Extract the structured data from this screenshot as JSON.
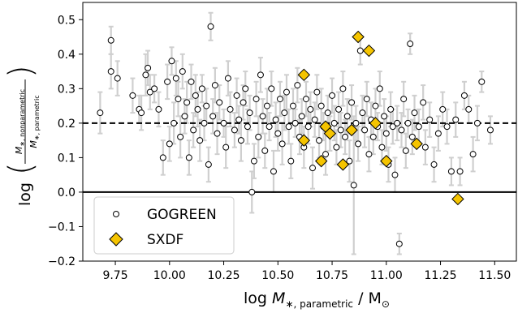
{
  "chart_data": {
    "type": "scatter",
    "xlabel": "log M*, parametric / M⊙",
    "ylabel": "log (M*, nonparametric / M*, parametric)",
    "xlim": [
      9.6,
      11.6
    ],
    "ylim": [
      -0.2,
      0.55
    ],
    "xticks": [
      "9.75",
      "10.00",
      "10.25",
      "10.50",
      "10.75",
      "11.00",
      "11.25",
      "11.50"
    ],
    "yticks": [
      "−0.2",
      "−0.1",
      "0.0",
      "0.1",
      "0.2",
      "0.3",
      "0.4",
      "0.5"
    ],
    "reference_lines": [
      {
        "y": 0.2,
        "style": "dashed"
      },
      {
        "y": 0.0,
        "style": "solid"
      }
    ],
    "legend": {
      "placement": "lower-left",
      "entries": [
        "GOGREEN",
        "SXDF"
      ]
    },
    "colors": {
      "gogreen_face": "#ffffff",
      "gogreen_edge": "#000000",
      "sxdf_face": "#f5c400",
      "sxdf_edge": "#000000",
      "errorbar": "#cfcfcf"
    },
    "series": [
      {
        "name": "GOGREEN",
        "marker": "circle",
        "points": [
          {
            "x": 9.68,
            "y": 0.23,
            "err": 0.06
          },
          {
            "x": 9.73,
            "y": 0.44,
            "err": 0.04
          },
          {
            "x": 9.73,
            "y": 0.35,
            "err": 0.05
          },
          {
            "x": 9.76,
            "y": 0.33,
            "err": 0.05
          },
          {
            "x": 9.83,
            "y": 0.28,
            "err": 0.05
          },
          {
            "x": 9.86,
            "y": 0.24,
            "err": 0.04
          },
          {
            "x": 9.87,
            "y": 0.23,
            "err": 0.05
          },
          {
            "x": 9.89,
            "y": 0.34,
            "err": 0.06
          },
          {
            "x": 9.9,
            "y": 0.36,
            "err": 0.05
          },
          {
            "x": 9.91,
            "y": 0.29,
            "err": 0.05
          },
          {
            "x": 9.93,
            "y": 0.3,
            "err": 0.04
          },
          {
            "x": 9.95,
            "y": 0.24,
            "err": 0.05
          },
          {
            "x": 9.97,
            "y": 0.1,
            "err": 0.05
          },
          {
            "x": 9.99,
            "y": 0.32,
            "err": 0.05
          },
          {
            "x": 10.0,
            "y": 0.14,
            "err": 0.05
          },
          {
            "x": 10.01,
            "y": 0.38,
            "err": 0.04
          },
          {
            "x": 10.02,
            "y": 0.2,
            "err": 0.06
          },
          {
            "x": 10.03,
            "y": 0.33,
            "err": 0.05
          },
          {
            "x": 10.04,
            "y": 0.27,
            "err": 0.05
          },
          {
            "x": 10.05,
            "y": 0.16,
            "err": 0.06
          },
          {
            "x": 10.06,
            "y": 0.35,
            "err": 0.05
          },
          {
            "x": 10.07,
            "y": 0.22,
            "err": 0.05
          },
          {
            "x": 10.08,
            "y": 0.26,
            "err": 0.06
          },
          {
            "x": 10.09,
            "y": 0.1,
            "err": 0.05
          },
          {
            "x": 10.1,
            "y": 0.32,
            "err": 0.05
          },
          {
            "x": 10.11,
            "y": 0.18,
            "err": 0.05
          },
          {
            "x": 10.12,
            "y": 0.28,
            "err": 0.06
          },
          {
            "x": 10.13,
            "y": 0.24,
            "err": 0.05
          },
          {
            "x": 10.14,
            "y": 0.15,
            "err": 0.06
          },
          {
            "x": 10.15,
            "y": 0.3,
            "err": 0.04
          },
          {
            "x": 10.16,
            "y": 0.2,
            "err": 0.05
          },
          {
            "x": 10.17,
            "y": 0.25,
            "err": 0.05
          },
          {
            "x": 10.18,
            "y": 0.08,
            "err": 0.05
          },
          {
            "x": 10.19,
            "y": 0.48,
            "err": 0.04
          },
          {
            "x": 10.2,
            "y": 0.22,
            "err": 0.05
          },
          {
            "x": 10.21,
            "y": 0.31,
            "err": 0.05
          },
          {
            "x": 10.22,
            "y": 0.17,
            "err": 0.06
          },
          {
            "x": 10.23,
            "y": 0.26,
            "err": 0.05
          },
          {
            "x": 10.25,
            "y": 0.2,
            "err": 0.04
          },
          {
            "x": 10.26,
            "y": 0.13,
            "err": 0.06
          },
          {
            "x": 10.27,
            "y": 0.33,
            "err": 0.05
          },
          {
            "x": 10.28,
            "y": 0.24,
            "err": 0.05
          },
          {
            "x": 10.3,
            "y": 0.18,
            "err": 0.05
          },
          {
            "x": 10.31,
            "y": 0.28,
            "err": 0.05
          },
          {
            "x": 10.32,
            "y": 0.21,
            "err": 0.04
          },
          {
            "x": 10.33,
            "y": 0.15,
            "err": 0.06
          },
          {
            "x": 10.34,
            "y": 0.26,
            "err": 0.05
          },
          {
            "x": 10.35,
            "y": 0.3,
            "err": 0.05
          },
          {
            "x": 10.36,
            "y": 0.19,
            "err": 0.05
          },
          {
            "x": 10.37,
            "y": 0.23,
            "err": 0.05
          },
          {
            "x": 10.38,
            "y": 0.0,
            "err": 0.06
          },
          {
            "x": 10.39,
            "y": 0.09,
            "err": 0.05
          },
          {
            "x": 10.4,
            "y": 0.27,
            "err": 0.05
          },
          {
            "x": 10.41,
            "y": 0.16,
            "err": 0.06
          },
          {
            "x": 10.42,
            "y": 0.34,
            "err": 0.05
          },
          {
            "x": 10.43,
            "y": 0.22,
            "err": 0.05
          },
          {
            "x": 10.44,
            "y": 0.12,
            "err": 0.05
          },
          {
            "x": 10.45,
            "y": 0.25,
            "err": 0.05
          },
          {
            "x": 10.46,
            "y": 0.19,
            "err": 0.04
          },
          {
            "x": 10.47,
            "y": 0.3,
            "err": 0.05
          },
          {
            "x": 10.48,
            "y": 0.06,
            "err": 0.06
          },
          {
            "x": 10.49,
            "y": 0.21,
            "err": 0.05
          },
          {
            "x": 10.5,
            "y": 0.17,
            "err": 0.05
          },
          {
            "x": 10.51,
            "y": 0.27,
            "err": 0.05
          },
          {
            "x": 10.52,
            "y": 0.14,
            "err": 0.06
          },
          {
            "x": 10.53,
            "y": 0.23,
            "err": 0.05
          },
          {
            "x": 10.54,
            "y": 0.29,
            "err": 0.05
          },
          {
            "x": 10.55,
            "y": 0.19,
            "err": 0.05
          },
          {
            "x": 10.56,
            "y": 0.09,
            "err": 0.05
          },
          {
            "x": 10.57,
            "y": 0.25,
            "err": 0.05
          },
          {
            "x": 10.58,
            "y": 0.2,
            "err": 0.04
          },
          {
            "x": 10.59,
            "y": 0.31,
            "err": 0.05
          },
          {
            "x": 10.6,
            "y": 0.16,
            "err": 0.05
          },
          {
            "x": 10.61,
            "y": 0.22,
            "err": 0.05
          },
          {
            "x": 10.62,
            "y": 0.13,
            "err": 0.06
          },
          {
            "x": 10.63,
            "y": 0.27,
            "err": 0.05
          },
          {
            "x": 10.64,
            "y": 0.19,
            "err": 0.05
          },
          {
            "x": 10.65,
            "y": 0.24,
            "err": 0.05
          },
          {
            "x": 10.66,
            "y": 0.07,
            "err": 0.06
          },
          {
            "x": 10.67,
            "y": 0.21,
            "err": 0.05
          },
          {
            "x": 10.68,
            "y": 0.29,
            "err": 0.05
          },
          {
            "x": 10.69,
            "y": 0.15,
            "err": 0.05
          },
          {
            "x": 10.7,
            "y": 0.25,
            "err": 0.05
          },
          {
            "x": 10.71,
            "y": 0.19,
            "err": 0.04
          },
          {
            "x": 10.72,
            "y": 0.11,
            "err": 0.06
          },
          {
            "x": 10.73,
            "y": 0.23,
            "err": 0.05
          },
          {
            "x": 10.74,
            "y": 0.17,
            "err": 0.05
          },
          {
            "x": 10.75,
            "y": 0.28,
            "err": 0.05
          },
          {
            "x": 10.76,
            "y": 0.2,
            "err": 0.05
          },
          {
            "x": 10.77,
            "y": 0.13,
            "err": 0.05
          },
          {
            "x": 10.78,
            "y": 0.24,
            "err": 0.05
          },
          {
            "x": 10.79,
            "y": 0.18,
            "err": 0.05
          },
          {
            "x": 10.8,
            "y": 0.3,
            "err": 0.05
          },
          {
            "x": 10.81,
            "y": 0.16,
            "err": 0.05
          },
          {
            "x": 10.82,
            "y": 0.22,
            "err": 0.05
          },
          {
            "x": 10.83,
            "y": 0.09,
            "err": 0.06
          },
          {
            "x": 10.84,
            "y": 0.26,
            "err": 0.05
          },
          {
            "x": 10.85,
            "y": 0.02,
            "err": 0.2
          },
          {
            "x": 10.86,
            "y": 0.2,
            "err": 0.05
          },
          {
            "x": 10.87,
            "y": 0.14,
            "err": 0.05
          },
          {
            "x": 10.88,
            "y": 0.41,
            "err": 0.04
          },
          {
            "x": 10.89,
            "y": 0.23,
            "err": 0.05
          },
          {
            "x": 10.9,
            "y": 0.18,
            "err": 0.05
          },
          {
            "x": 10.91,
            "y": 0.27,
            "err": 0.05
          },
          {
            "x": 10.92,
            "y": 0.11,
            "err": 0.05
          },
          {
            "x": 10.93,
            "y": 0.21,
            "err": 0.05
          },
          {
            "x": 10.94,
            "y": 0.16,
            "err": 0.05
          },
          {
            "x": 10.95,
            "y": 0.25,
            "err": 0.05
          },
          {
            "x": 10.96,
            "y": 0.19,
            "err": 0.04
          },
          {
            "x": 10.97,
            "y": 0.3,
            "err": 0.05
          },
          {
            "x": 10.98,
            "y": 0.13,
            "err": 0.05
          },
          {
            "x": 10.99,
            "y": 0.22,
            "err": 0.05
          },
          {
            "x": 11.0,
            "y": 0.17,
            "err": 0.05
          },
          {
            "x": 11.01,
            "y": 0.08,
            "err": 0.05
          },
          {
            "x": 11.02,
            "y": 0.24,
            "err": 0.05
          },
          {
            "x": 11.03,
            "y": 0.19,
            "err": 0.05
          },
          {
            "x": 11.04,
            "y": 0.05,
            "err": 0.05
          },
          {
            "x": 11.05,
            "y": 0.2,
            "err": 0.05
          },
          {
            "x": 11.06,
            "y": -0.15,
            "err": 0.03
          },
          {
            "x": 11.07,
            "y": 0.18,
            "err": 0.05
          },
          {
            "x": 11.08,
            "y": 0.27,
            "err": 0.05
          },
          {
            "x": 11.09,
            "y": 0.12,
            "err": 0.05
          },
          {
            "x": 11.1,
            "y": 0.2,
            "err": 0.04
          },
          {
            "x": 11.11,
            "y": 0.43,
            "err": 0.03
          },
          {
            "x": 11.12,
            "y": 0.16,
            "err": 0.05
          },
          {
            "x": 11.13,
            "y": 0.23,
            "err": 0.05
          },
          {
            "x": 11.15,
            "y": 0.19,
            "err": 0.05
          },
          {
            "x": 11.17,
            "y": 0.26,
            "err": 0.05
          },
          {
            "x": 11.18,
            "y": 0.13,
            "err": 0.05
          },
          {
            "x": 11.2,
            "y": 0.21,
            "err": 0.05
          },
          {
            "x": 11.22,
            "y": 0.08,
            "err": 0.05
          },
          {
            "x": 11.24,
            "y": 0.17,
            "err": 0.05
          },
          {
            "x": 11.26,
            "y": 0.24,
            "err": 0.05
          },
          {
            "x": 11.28,
            "y": 0.19,
            "err": 0.05
          },
          {
            "x": 11.3,
            "y": 0.06,
            "err": 0.04
          },
          {
            "x": 11.32,
            "y": 0.21,
            "err": 0.05
          },
          {
            "x": 11.34,
            "y": 0.06,
            "err": 0.04
          },
          {
            "x": 11.36,
            "y": 0.28,
            "err": 0.04
          },
          {
            "x": 11.38,
            "y": 0.24,
            "err": 0.04
          },
          {
            "x": 11.4,
            "y": 0.11,
            "err": 0.05
          },
          {
            "x": 11.42,
            "y": 0.2,
            "err": 0.05
          },
          {
            "x": 11.44,
            "y": 0.32,
            "err": 0.03
          },
          {
            "x": 11.48,
            "y": 0.18,
            "err": 0.04
          }
        ]
      },
      {
        "name": "SXDF",
        "marker": "diamond",
        "points": [
          {
            "x": 10.62,
            "y": 0.34
          },
          {
            "x": 10.62,
            "y": 0.15
          },
          {
            "x": 10.7,
            "y": 0.09
          },
          {
            "x": 10.72,
            "y": 0.19
          },
          {
            "x": 10.74,
            "y": 0.17
          },
          {
            "x": 10.8,
            "y": 0.08
          },
          {
            "x": 10.84,
            "y": 0.18
          },
          {
            "x": 10.87,
            "y": 0.45
          },
          {
            "x": 10.92,
            "y": 0.41
          },
          {
            "x": 10.95,
            "y": 0.2
          },
          {
            "x": 11.0,
            "y": 0.09
          },
          {
            "x": 11.14,
            "y": 0.14
          },
          {
            "x": 11.33,
            "y": -0.02
          }
        ]
      }
    ]
  }
}
